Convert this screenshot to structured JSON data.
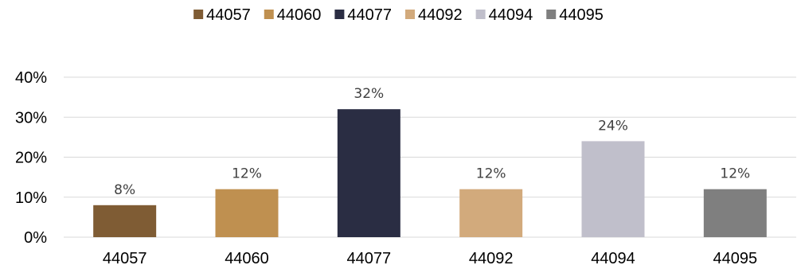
{
  "chart_data": {
    "type": "bar",
    "title": "",
    "xlabel": "",
    "ylabel": "",
    "categories": [
      "44057",
      "44060",
      "44077",
      "44092",
      "44094",
      "44095"
    ],
    "values": [
      8,
      12,
      32,
      12,
      24,
      12
    ],
    "data_labels": [
      "8%",
      "12%",
      "32%",
      "12%",
      "24%",
      "12%"
    ],
    "colors": [
      "#7f5c34",
      "#bf9050",
      "#2a2d43",
      "#d2aa7c",
      "#c0bfcb",
      "#7f7f7f"
    ],
    "ylim": [
      0,
      40
    ],
    "yticks": [
      0,
      10,
      20,
      30,
      40
    ],
    "ytick_labels": [
      "0%",
      "10%",
      "20%",
      "30%",
      "40%"
    ],
    "grid": true,
    "legend": {
      "position": "top",
      "entries": [
        "44057",
        "44060",
        "44077",
        "44092",
        "44094",
        "44095"
      ]
    }
  }
}
